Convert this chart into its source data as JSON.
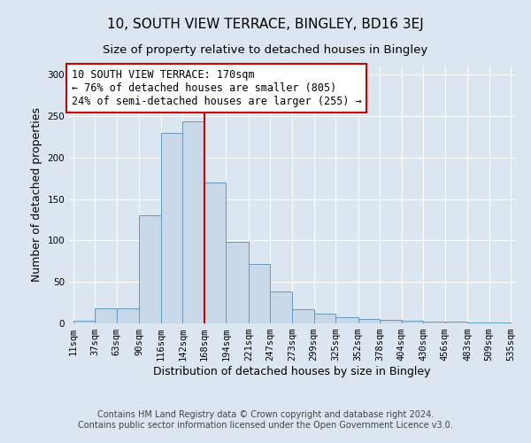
{
  "title": "10, SOUTH VIEW TERRACE, BINGLEY, BD16 3EJ",
  "subtitle": "Size of property relative to detached houses in Bingley",
  "xlabel": "Distribution of detached houses by size in Bingley",
  "ylabel": "Number of detached properties",
  "footer_line1": "Contains HM Land Registry data © Crown copyright and database right 2024.",
  "footer_line2": "Contains public sector information licensed under the Open Government Licence v3.0.",
  "annotation_line1": "10 SOUTH VIEW TERRACE: 170sqm",
  "annotation_line2": "← 76% of detached houses are smaller (805)",
  "annotation_line3": "24% of semi-detached houses are larger (255) →",
  "bin_edges": [
    11,
    37,
    63,
    90,
    116,
    142,
    168,
    194,
    221,
    247,
    273,
    299,
    325,
    352,
    378,
    404,
    430,
    456,
    483,
    509,
    535
  ],
  "bar_heights": [
    3,
    18,
    18,
    130,
    230,
    244,
    170,
    98,
    72,
    38,
    17,
    12,
    8,
    5,
    4,
    3,
    2,
    2,
    1,
    1
  ],
  "bar_color": "#c8d8e8",
  "bar_edge_color": "#6699bb",
  "vline_x": 168,
  "vline_color": "#cc0000",
  "ylim": [
    0,
    310
  ],
  "yticks": [
    0,
    50,
    100,
    150,
    200,
    250,
    300
  ],
  "x_tick_labels": [
    "11sqm",
    "37sqm",
    "63sqm",
    "90sqm",
    "116sqm",
    "142sqm",
    "168sqm",
    "194sqm",
    "221sqm",
    "247sqm",
    "273sqm",
    "299sqm",
    "325sqm",
    "352sqm",
    "378sqm",
    "404sqm",
    "430sqm",
    "456sqm",
    "483sqm",
    "509sqm",
    "535sqm"
  ],
  "background_color": "#dce6f0",
  "plot_background_color": "#dce6f0",
  "annotation_box_color": "#ffffff",
  "annotation_box_edge_color": "#cc0000",
  "title_fontsize": 11,
  "subtitle_fontsize": 9.5,
  "axis_label_fontsize": 9,
  "tick_fontsize": 7.5,
  "annotation_fontsize": 8.5,
  "footer_fontsize": 7
}
